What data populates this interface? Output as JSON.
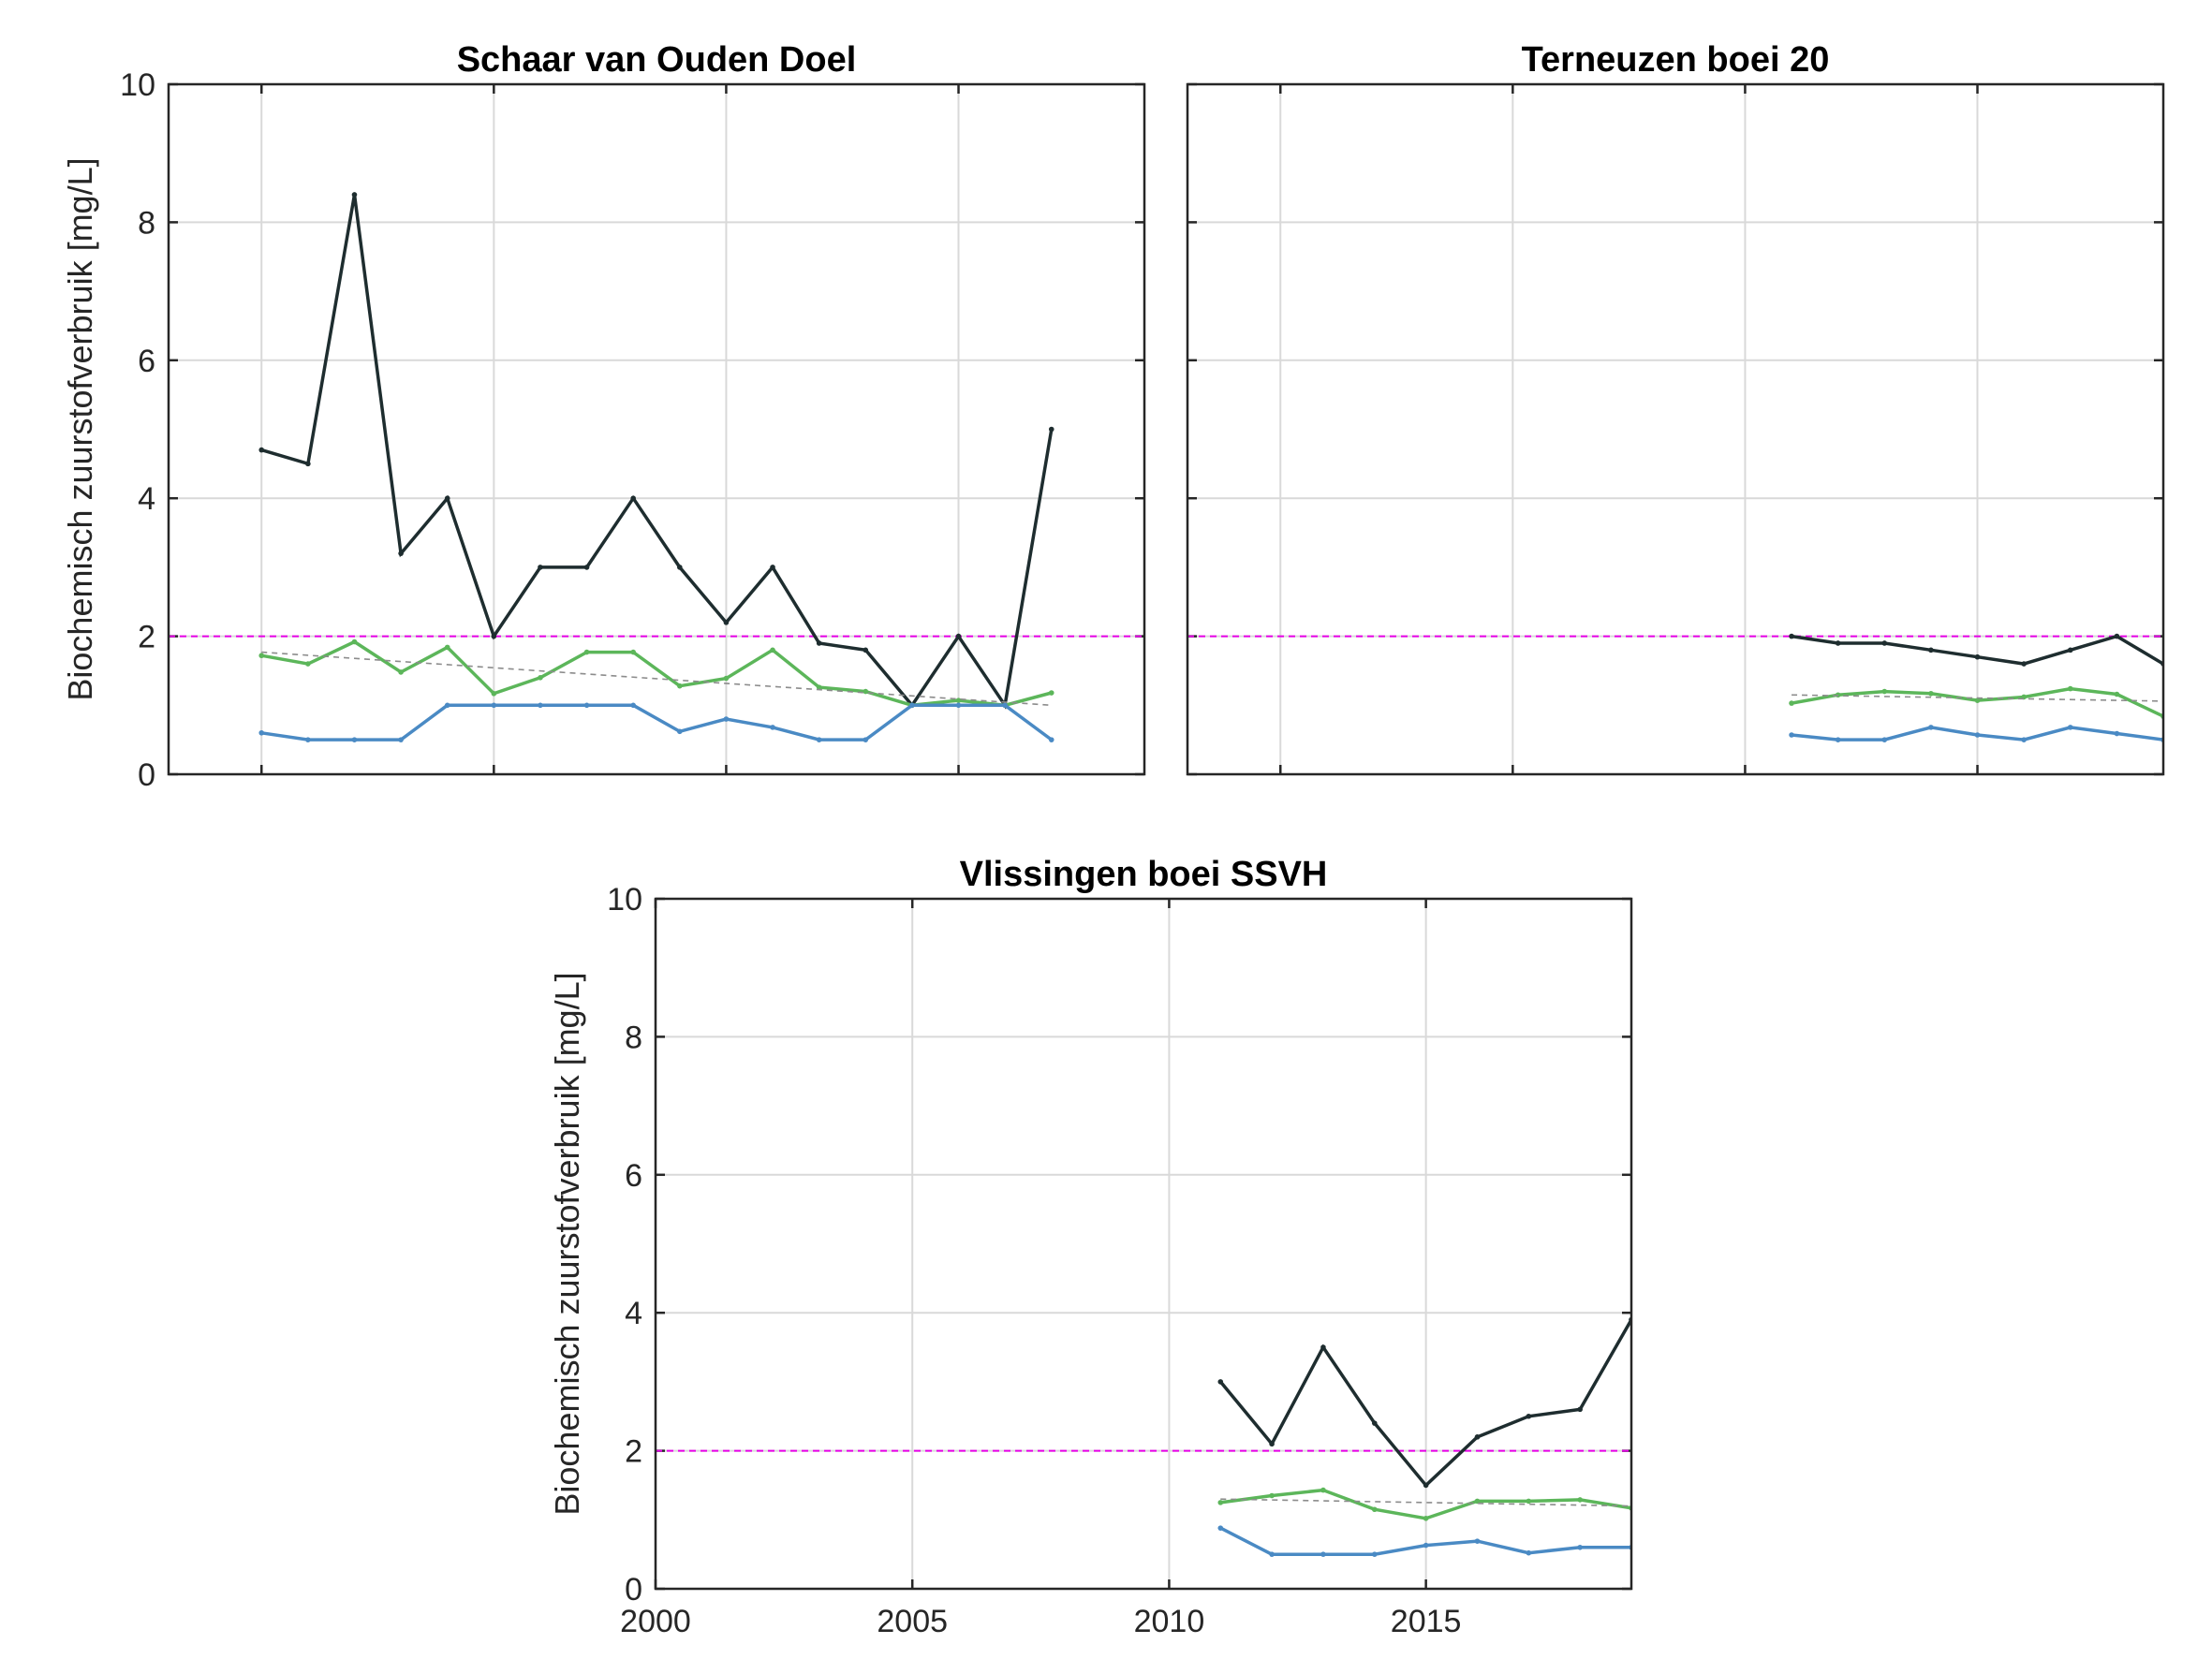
{
  "chart_data": [
    {
      "type": "line",
      "title": "Schaar van Ouden Doel",
      "ylabel": "Biochemisch zuurstofverbruik [mg/L]",
      "xlim": [
        1998,
        2019
      ],
      "ylim": [
        0,
        10
      ],
      "yticks": [
        0,
        2,
        4,
        6,
        8,
        10
      ],
      "xticks": [
        2000,
        2005,
        2010,
        2015
      ],
      "show_xtick_labels": false,
      "grid": true,
      "norm_line": 2,
      "series": [
        {
          "color": "#1e2d2f",
          "x": [
            2000,
            2001,
            2002,
            2003,
            2004,
            2005,
            2006,
            2007,
            2008,
            2009,
            2010,
            2011,
            2012,
            2013,
            2014,
            2015,
            2016,
            2017
          ],
          "y": [
            4.7,
            4.5,
            8.4,
            3.2,
            4.0,
            2.0,
            3.0,
            3.0,
            4.0,
            3.0,
            2.2,
            3.0,
            1.9,
            1.8,
            1.0,
            2.0,
            1.0,
            5.0
          ]
        },
        {
          "color": "#5cb65a",
          "x": [
            2000,
            2001,
            2002,
            2003,
            2004,
            2005,
            2006,
            2007,
            2008,
            2009,
            2010,
            2011,
            2012,
            2013,
            2014,
            2015,
            2016,
            2017
          ],
          "y": [
            1.72,
            1.6,
            1.92,
            1.48,
            1.84,
            1.17,
            1.4,
            1.77,
            1.77,
            1.28,
            1.39,
            1.8,
            1.26,
            1.2,
            1.0,
            1.07,
            1.0,
            1.18
          ]
        },
        {
          "color": "#4a8ac4",
          "x": [
            2000,
            2001,
            2002,
            2003,
            2004,
            2005,
            2006,
            2007,
            2008,
            2009,
            2010,
            2011,
            2012,
            2013,
            2014,
            2015,
            2016,
            2017
          ],
          "y": [
            0.6,
            0.5,
            0.5,
            0.5,
            1.0,
            1.0,
            1.0,
            1.0,
            1.0,
            0.62,
            0.8,
            0.68,
            0.5,
            0.5,
            1.0,
            1.0,
            1.0,
            0.5
          ]
        }
      ],
      "trend": {
        "x": [
          2000,
          2017
        ],
        "y": [
          1.77,
          1.0
        ]
      }
    },
    {
      "type": "line",
      "title": "Terneuzen boei 20",
      "ylabel": "",
      "xlim": [
        1998,
        2019
      ],
      "ylim": [
        0,
        10
      ],
      "yticks": [
        0,
        2,
        4,
        6,
        8,
        10
      ],
      "xticks": [
        2000,
        2005,
        2010,
        2015
      ],
      "show_xtick_labels": false,
      "show_ytick_labels": false,
      "grid": true,
      "norm_line": 2,
      "series": [
        {
          "color": "#1e2d2f",
          "x": [
            2011,
            2012,
            2013,
            2014,
            2015,
            2016,
            2017,
            2018,
            2019
          ],
          "y": [
            2.0,
            1.9,
            1.9,
            1.8,
            1.7,
            1.6,
            1.8,
            2.0,
            1.6
          ]
        },
        {
          "color": "#5cb65a",
          "x": [
            2011,
            2012,
            2013,
            2014,
            2015,
            2016,
            2017,
            2018,
            2019
          ],
          "y": [
            1.03,
            1.15,
            1.2,
            1.17,
            1.07,
            1.12,
            1.24,
            1.16,
            0.84
          ]
        },
        {
          "color": "#4a8ac4",
          "x": [
            2011,
            2012,
            2013,
            2014,
            2015,
            2016,
            2017,
            2018,
            2019
          ],
          "y": [
            0.57,
            0.5,
            0.5,
            0.68,
            0.57,
            0.5,
            0.68,
            0.59,
            0.5
          ]
        }
      ],
      "trend": {
        "x": [
          2011,
          2019
        ],
        "y": [
          1.15,
          1.06
        ]
      }
    },
    {
      "type": "line",
      "title": "Vlissingen boei SSVH",
      "ylabel": "Biochemisch zuurstofverbruik [mg/L]",
      "xlim": [
        2000,
        2019
      ],
      "ylim": [
        0,
        10
      ],
      "yticks": [
        0,
        2,
        4,
        6,
        8,
        10
      ],
      "xticks": [
        2000,
        2005,
        2010,
        2015
      ],
      "show_xtick_labels": true,
      "grid": true,
      "norm_line": 2,
      "series": [
        {
          "color": "#1e2d2f",
          "x": [
            2011,
            2012,
            2013,
            2014,
            2015,
            2016,
            2017,
            2018,
            2019
          ],
          "y": [
            3.0,
            2.1,
            3.5,
            2.4,
            1.5,
            2.2,
            2.5,
            2.6,
            3.9
          ]
        },
        {
          "color": "#5cb65a",
          "x": [
            2011,
            2012,
            2013,
            2014,
            2015,
            2016,
            2017,
            2018,
            2019
          ],
          "y": [
            1.25,
            1.35,
            1.43,
            1.15,
            1.02,
            1.27,
            1.27,
            1.29,
            1.17
          ]
        },
        {
          "color": "#4a8ac4",
          "x": [
            2011,
            2012,
            2013,
            2014,
            2015,
            2016,
            2017,
            2018,
            2019
          ],
          "y": [
            0.88,
            0.5,
            0.5,
            0.5,
            0.63,
            0.69,
            0.52,
            0.6,
            0.6
          ]
        }
      ],
      "trend": {
        "x": [
          2011,
          2019
        ],
        "y": [
          1.3,
          1.2
        ]
      }
    }
  ],
  "colors": {
    "norm_line": "#e600e6",
    "trend_line": "#8c8c8c",
    "axis": "#262626",
    "grid": "#d9d9d9"
  }
}
